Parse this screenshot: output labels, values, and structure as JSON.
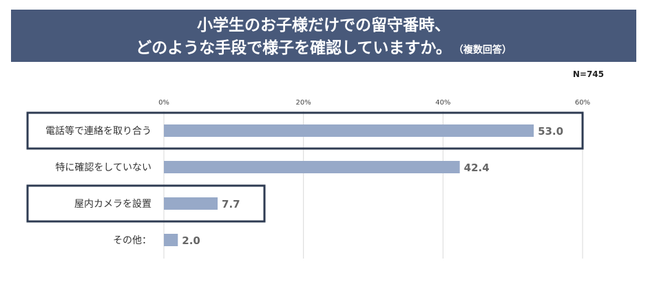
{
  "title": {
    "line1": "小学生のお子様だけでの留守番時、",
    "line2": "どのような手段で様子を確認していますか。",
    "note": "（複数回答）"
  },
  "sample_size": "N=745",
  "colors": {
    "header_bg": "#48597a",
    "bar": "#97a9c8",
    "highlight_frame": "#2e3b52",
    "grid": "#d9d9d9"
  },
  "chart_data": {
    "type": "bar",
    "orientation": "horizontal",
    "categories": [
      "電話等で連絡を取り合う",
      "特に確認をしていない",
      "屋内カメラを設置",
      "その他："
    ],
    "values": [
      53.0,
      42.4,
      7.7,
      2.0
    ],
    "value_labels": [
      "53.0",
      "42.4",
      "7.7",
      "2.0"
    ],
    "xlim": [
      0,
      60
    ],
    "ticks": [
      0,
      20,
      40,
      60
    ],
    "tick_labels": [
      "0%",
      "20%",
      "40%",
      "60%"
    ],
    "grid": true,
    "highlighted_categories": [
      0,
      2
    ]
  }
}
